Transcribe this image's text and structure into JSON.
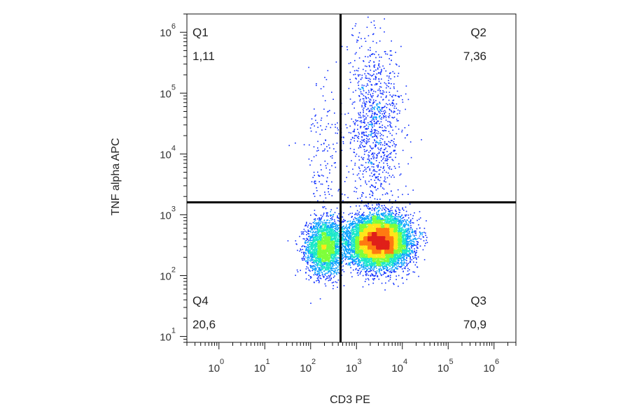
{
  "chart_data": {
    "type": "scatter",
    "subtype": "flow-cytometry density dot plot with quadrant gates",
    "xlabel": "CD3 PE",
    "ylabel": "TNF alpha APC",
    "x_scale": "log",
    "y_scale": "log",
    "xlim": [
      0.2,
      3000000
    ],
    "ylim": [
      8,
      2000000
    ],
    "x_ticks": [
      {
        "base": "10",
        "exp": "0",
        "value": 1
      },
      {
        "base": "10",
        "exp": "1",
        "value": 10
      },
      {
        "base": "10",
        "exp": "2",
        "value": 100
      },
      {
        "base": "10",
        "exp": "3",
        "value": 1000
      },
      {
        "base": "10",
        "exp": "4",
        "value": 10000
      },
      {
        "base": "10",
        "exp": "5",
        "value": 100000
      },
      {
        "base": "10",
        "exp": "6",
        "value": 1000000
      }
    ],
    "y_ticks": [
      {
        "base": "10",
        "exp": "1",
        "value": 10
      },
      {
        "base": "10",
        "exp": "2",
        "value": 100
      },
      {
        "base": "10",
        "exp": "3",
        "value": 1000
      },
      {
        "base": "10",
        "exp": "4",
        "value": 10000
      },
      {
        "base": "10",
        "exp": "5",
        "value": 100000
      },
      {
        "base": "10",
        "exp": "6",
        "value": 1000000
      }
    ],
    "gates": {
      "x_threshold": 450,
      "y_threshold": 1600
    },
    "quadrants": [
      {
        "name": "Q1",
        "value": "1,11",
        "position": "top-left"
      },
      {
        "name": "Q2",
        "value": "7,36",
        "position": "top-right"
      },
      {
        "name": "Q3",
        "value": "70,9",
        "position": "bottom-right"
      },
      {
        "name": "Q4",
        "value": "20,6",
        "position": "bottom-left"
      }
    ],
    "populations": [
      {
        "center_x": 200,
        "center_y": 300,
        "spread_x_decades": 0.2,
        "spread_y_decades": 0.22,
        "weight": 0.2
      },
      {
        "center_x": 3000,
        "center_y": 370,
        "spread_x_decades": 0.32,
        "spread_y_decades": 0.2,
        "weight": 0.71
      },
      {
        "center_x": 2500,
        "center_y": 30000,
        "spread_x_decades": 0.3,
        "spread_y_decades": 0.75,
        "weight": 0.074
      },
      {
        "center_x": 200,
        "center_y": 8000,
        "spread_x_decades": 0.22,
        "spread_y_decades": 0.6,
        "weight": 0.011
      }
    ],
    "color_scale": [
      "#0b2cff",
      "#0aa0ff",
      "#19e8c8",
      "#7fff3a",
      "#ffe61a",
      "#ff7a12",
      "#e0201a"
    ],
    "grid": false,
    "legend": "none"
  }
}
